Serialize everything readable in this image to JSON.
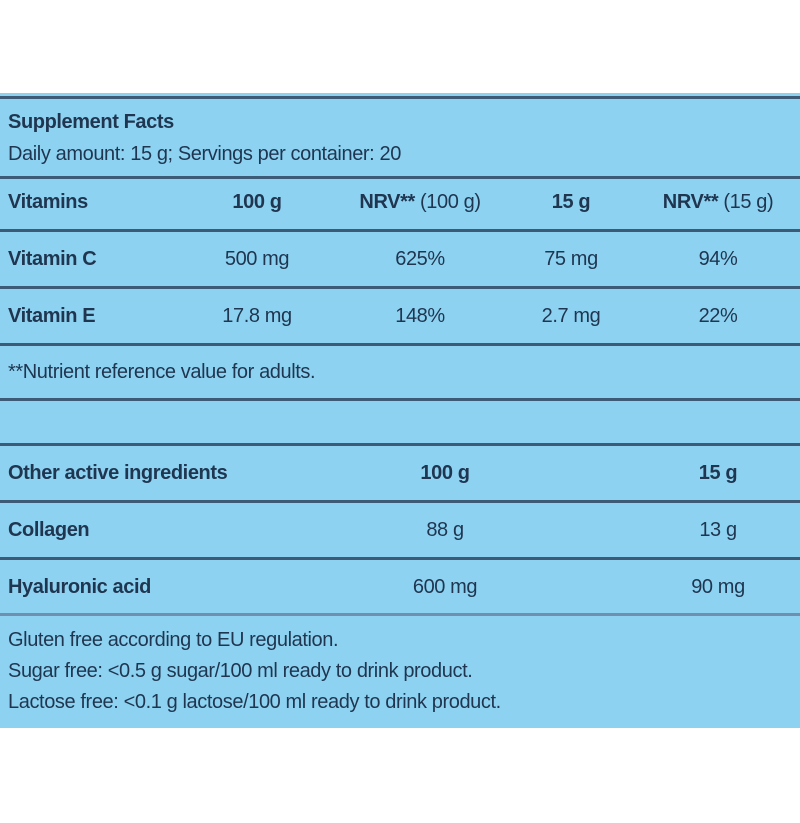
{
  "header": {
    "title": "Supplement Facts",
    "subtitle": "Daily amount: 15 g; Servings per container: 20"
  },
  "vitamins": {
    "columns": [
      "Vitamins",
      "100 g",
      {
        "bold": "NRV**",
        "normal": "(100 g)"
      },
      "15 g",
      {
        "bold": "NRV**",
        "normal": "(15 g)"
      }
    ],
    "rows": [
      [
        "Vitamin C",
        "500 mg",
        "625%",
        "75 mg",
        "94%"
      ],
      [
        "Vitamin E",
        "17.8 mg",
        "148%",
        "2.7 mg",
        "22%"
      ]
    ],
    "footnote": "**Nutrient reference value for adults."
  },
  "other": {
    "columns": [
      "Other active ingredients",
      "100 g",
      "15 g"
    ],
    "rows": [
      [
        "Collagen",
        "88 g",
        "13 g"
      ],
      [
        "Hyaluronic acid",
        "600 mg",
        "90 mg"
      ]
    ]
  },
  "notes": [
    "Gluten free according to EU regulation.",
    "Sugar free: <0.5 g sugar/100 ml ready to drink product.",
    "Lactose free: <0.1 g lactose/100 ml ready to drink product."
  ]
}
